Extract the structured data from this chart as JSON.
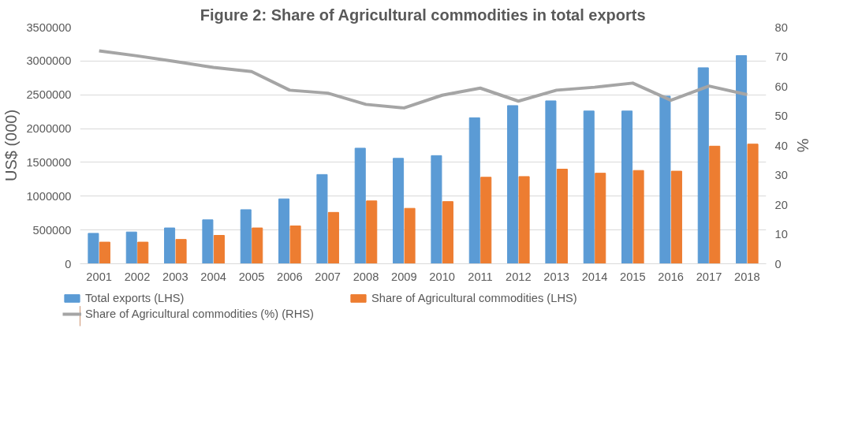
{
  "chart_data": {
    "type": "bar",
    "title": "Figure 2: Share of Agricultural commodities in total exports",
    "ylabel": "US$ (000)",
    "y2label": "%",
    "categories": [
      "2001",
      "2002",
      "2003",
      "2004",
      "2005",
      "2006",
      "2007",
      "2008",
      "2009",
      "2010",
      "2011",
      "2012",
      "2013",
      "2014",
      "2015",
      "2016",
      "2017",
      "2018"
    ],
    "series": [
      {
        "name": "Total exports (LHS)",
        "color": "#5b9bd5",
        "values": [
          450000,
          470000,
          530000,
          650000,
          800000,
          960000,
          1320000,
          1710000,
          1560000,
          1600000,
          2160000,
          2340000,
          2410000,
          2260000,
          2260000,
          2480000,
          2900000,
          3080000
        ]
      },
      {
        "name": "Share of Agricultural commodities (LHS)",
        "color": "#ed7d31",
        "values": [
          320000,
          320000,
          360000,
          420000,
          530000,
          560000,
          760000,
          930000,
          820000,
          920000,
          1280000,
          1290000,
          1400000,
          1340000,
          1380000,
          1370000,
          1740000,
          1770000
        ]
      },
      {
        "name": "Share of Agricultural commodities (%) (RHS)",
        "color": "#a5a5a5",
        "type": "line",
        "axis": "y2",
        "values": [
          72,
          70.3,
          68.4,
          66.4,
          65,
          58.7,
          57.7,
          53.9,
          52.7,
          57,
          59.4,
          55,
          58.7,
          59.7,
          61.1,
          55.3,
          60.1,
          57.2
        ]
      }
    ],
    "ylim": [
      0,
      3500000
    ],
    "yticks": [
      0,
      500000,
      1000000,
      1500000,
      2000000,
      2500000,
      3000000,
      3500000
    ],
    "y2lim": [
      0,
      80
    ],
    "y2ticks": [
      0,
      10,
      20,
      30,
      40,
      50,
      60,
      70,
      80
    ],
    "grid": "y",
    "legend": "bottom"
  }
}
